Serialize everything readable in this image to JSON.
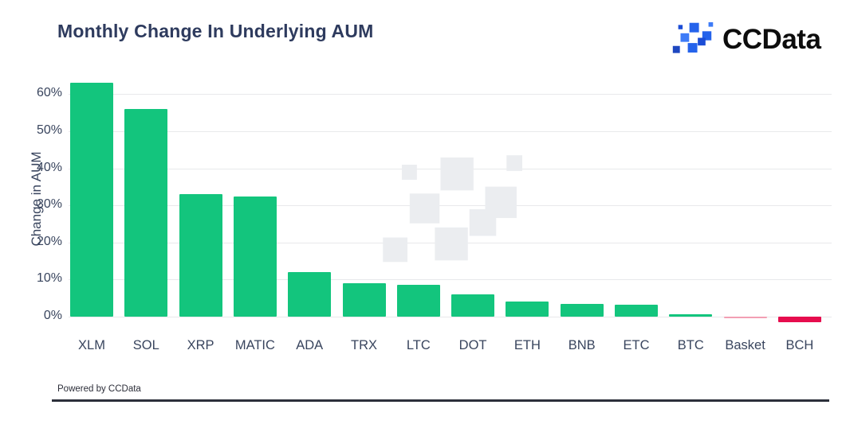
{
  "header": {
    "title": "Monthly Change In Underlying AUM",
    "brand_name": "CCData"
  },
  "chart_data": {
    "type": "bar",
    "title": "Monthly Change In Underlying AUM",
    "xlabel": "",
    "ylabel": "Change in AUM",
    "categories": [
      "XLM",
      "SOL",
      "XRP",
      "MATIC",
      "ADA",
      "TRX",
      "LTC",
      "DOT",
      "ETH",
      "BNB",
      "ETC",
      "BTC",
      "Basket",
      "BCH"
    ],
    "values": [
      63,
      56,
      33,
      32.5,
      12,
      9.1,
      8.5,
      6,
      4.1,
      3.5,
      3.2,
      0.6,
      -0.2,
      -1.5
    ],
    "bar_colors": [
      "#13c57d",
      "#13c57d",
      "#13c57d",
      "#13c57d",
      "#13c57d",
      "#13c57d",
      "#13c57d",
      "#13c57d",
      "#13c57d",
      "#13c57d",
      "#13c57d",
      "#13c57d",
      "#f29fb3",
      "#e60d4e"
    ],
    "yticks": [
      0,
      10,
      20,
      30,
      40,
      50,
      60
    ],
    "ytick_labels": [
      "0%",
      "10%",
      "20%",
      "30%",
      "40%",
      "50%",
      "60%"
    ],
    "ylim": [
      -2,
      64
    ],
    "grid": true,
    "legend": false
  },
  "footer": {
    "powered_by": "Powered by CCData"
  },
  "colors": {
    "title_text": "#2e3b5e",
    "axis_text": "#39455e",
    "gridline": "#e8e9eb",
    "positive_bar": "#13c57d",
    "negative_bar": "#e60d4e",
    "basket_bar": "#f29fb3",
    "watermark": "#ebedf0",
    "footer_line": "#2c2f3a",
    "logo_blues": [
      "#1b4dd6",
      "#2563eb",
      "#3d7bf7",
      "#2563eb",
      "#3d7bf7",
      "#1b4dd6",
      "#2563eb",
      "#1e47c0"
    ]
  }
}
